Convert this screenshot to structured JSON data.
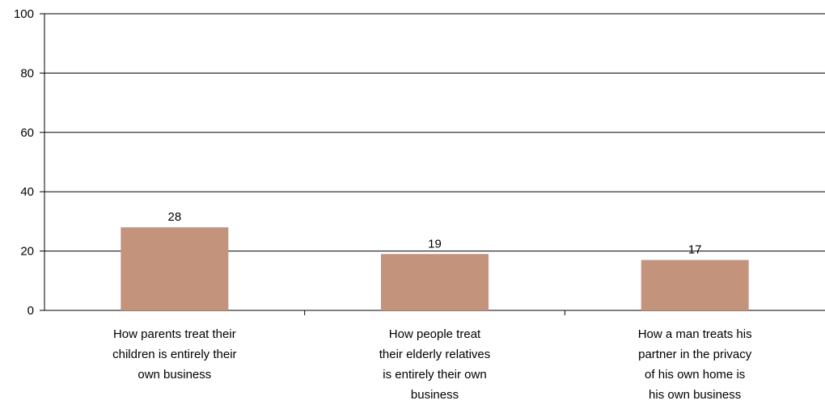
{
  "chart_data": {
    "type": "bar",
    "title": "",
    "xlabel": "",
    "ylabel": "",
    "ylim": [
      0,
      100
    ],
    "yticks": [
      0,
      20,
      40,
      60,
      80,
      100
    ],
    "grid": true,
    "bar_color": "#c4937c",
    "categories": [
      [
        "How parents treat their",
        "children is entirely their",
        "own business"
      ],
      [
        "How people treat",
        "their  elderly relatives",
        "is entirely their own",
        "business"
      ],
      [
        "How a man treats his",
        "partner in the privacy",
        "of his own home is",
        "his own business"
      ]
    ],
    "values": [
      28,
      19,
      17
    ]
  }
}
